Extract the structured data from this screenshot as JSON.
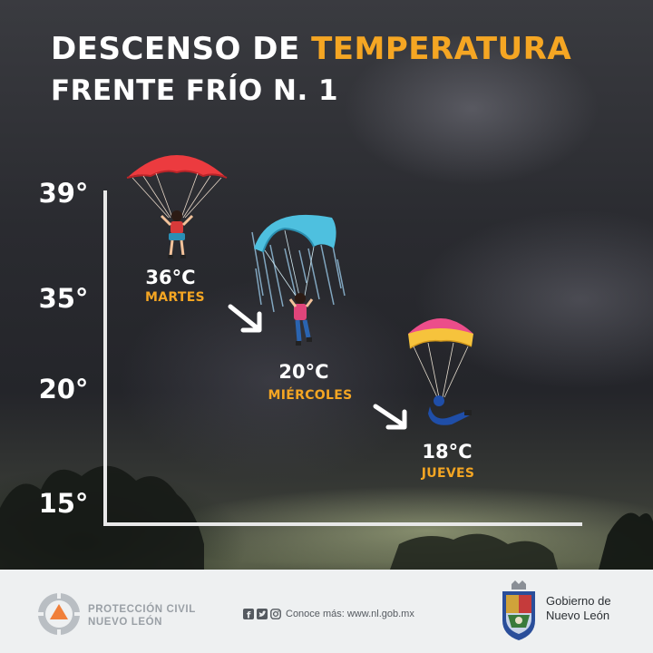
{
  "title": {
    "line1_prefix": "DESCENSO DE ",
    "line1_highlight": "TEMPERATURA",
    "line2": "FRENTE FRÍO N. 1"
  },
  "axis_ticks": [
    "39°",
    "35°",
    "20°",
    "15°"
  ],
  "points": [
    {
      "temp": "36°C",
      "day": "MARTES"
    },
    {
      "temp": "20°C",
      "day": "MIÉRCOLES"
    },
    {
      "temp": "18°C",
      "day": "JUEVES"
    }
  ],
  "footer": {
    "org_line1": "PROTECCIÓN CIVIL",
    "org_line2": "NUEVO LEÓN",
    "more_info": "Conoce más: www.nl.gob.mx",
    "gov_line1": "Gobierno de",
    "gov_line2": "Nuevo León"
  },
  "colors": {
    "accent": "#f5a623",
    "text": "#ffffff",
    "footer_bg": "#eef0f1"
  },
  "icons": [
    "parachute-red-icon",
    "parachute-blue-icon",
    "parachute-pink-yellow-icon",
    "arrow-down-right-icon",
    "facebook-icon",
    "twitter-icon",
    "instagram-icon",
    "proteccion-civil-logo",
    "nuevo-leon-shield-logo"
  ]
}
